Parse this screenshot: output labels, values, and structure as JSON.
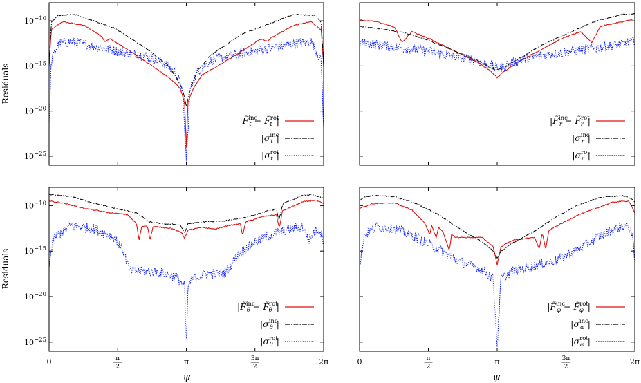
{
  "figure": {
    "ylabel": "Residuals",
    "xlabel": "ψ"
  },
  "chart_data": [
    {
      "type": "line",
      "panel": "t",
      "yscale": "log",
      "xlim": [
        0,
        6.2832
      ],
      "ylim": [
        1e-26,
        1e-08
      ],
      "yticks": [
        "10−10",
        "10−15",
        "10−20",
        "10−25"
      ],
      "xticks": [],
      "series": [
        {
          "name": "|F̃t^inc − F̃t^rot|",
          "color": "#e01010",
          "style": "solid",
          "x": [
            0,
            0.05,
            0.3,
            0.8,
            1.2,
            1.28,
            1.4,
            1.8,
            2.3,
            2.8,
            3.0,
            3.1,
            3.1416,
            3.18,
            3.3,
            3.5,
            4.0,
            4.5,
            4.85,
            5.0,
            5.1,
            5.6,
            6.0,
            6.23,
            6.2832
          ],
          "log10y": [
            -15,
            -11,
            -10.1,
            -10.5,
            -11.7,
            -12.3,
            -12,
            -13.2,
            -14.8,
            -16.5,
            -17.5,
            -19,
            -24,
            -19,
            -17.5,
            -16,
            -14.6,
            -13.1,
            -12,
            -12.3,
            -11.8,
            -10.5,
            -10.1,
            -11,
            -15
          ]
        },
        {
          "name": "|σt^inc|",
          "color": "#000000",
          "style": "dashdot",
          "x": [
            0,
            0.05,
            0.2,
            0.6,
            1.5,
            2.2,
            2.7,
            2.9,
            3.05,
            3.1416,
            3.23,
            3.4,
            3.7,
            4.4,
            5.6,
            6.1,
            6.23,
            6.2832
          ],
          "log10y": [
            -15,
            -10.2,
            -9.4,
            -9.3,
            -10.8,
            -13,
            -14.8,
            -16.2,
            -17.5,
            -19.5,
            -17.5,
            -15.5,
            -13.8,
            -11.5,
            -9.3,
            -9.4,
            -10.2,
            -15
          ]
        },
        {
          "name": "|σt^rot|",
          "color": "#0a1cff",
          "style": "dotted",
          "x": [
            0,
            0.05,
            0.2,
            0.5,
            1.0,
            1.6,
            2.2,
            2.6,
            2.9,
            3.05,
            3.1416,
            3.23,
            3.4,
            3.7,
            4.2,
            4.7,
            5.5,
            6.0,
            6.23,
            6.2832
          ],
          "log10y": [
            -22,
            -14.5,
            -12.6,
            -12.3,
            -12.8,
            -13.4,
            -13.9,
            -14.6,
            -15.8,
            -17.5,
            -25.5,
            -17.5,
            -15.6,
            -14.4,
            -13.8,
            -13.4,
            -12.6,
            -12.3,
            -14.5,
            -22
          ]
        }
      ]
    },
    {
      "type": "line",
      "panel": "r",
      "yscale": "log",
      "xlim": [
        0,
        6.2832
      ],
      "ylim": [
        1e-26,
        1e-08
      ],
      "yticks": [],
      "xticks": [],
      "series": [
        {
          "name": "|F̃r^inc − F̃r^rot|",
          "color": "#e01010",
          "style": "solid",
          "x": [
            0,
            0.4,
            0.8,
            0.97,
            1.2,
            1.6,
            2.2,
            2.7,
            3.0,
            3.1416,
            3.3,
            3.6,
            4.1,
            4.6,
            5.05,
            5.3,
            5.5,
            6.0,
            6.2832
          ],
          "log10y": [
            -9.9,
            -10.1,
            -10.7,
            -12.4,
            -11.2,
            -12,
            -13.4,
            -14.6,
            -15.6,
            -16.3,
            -15.6,
            -14.6,
            -13.3,
            -12,
            -11.2,
            -12.4,
            -10.6,
            -10.1,
            -9.8
          ]
        },
        {
          "name": "|σr^inc|",
          "color": "#000000",
          "style": "dashdot",
          "x": [
            0,
            0.5,
            1.0,
            1.6,
            2.2,
            2.7,
            3.0,
            3.1416,
            3.3,
            3.7,
            4.2,
            4.8,
            5.4,
            6.0,
            6.2832
          ],
          "log10y": [
            -10.6,
            -10.9,
            -11.3,
            -12.2,
            -13.4,
            -14.4,
            -15.2,
            -15.4,
            -15.2,
            -14,
            -12.6,
            -11.3,
            -10,
            -9.3,
            -9.2
          ]
        },
        {
          "name": "|σr^rot|",
          "color": "#0a1cff",
          "style": "dotted",
          "x": [
            0,
            0.5,
            1.0,
            1.6,
            2.2,
            2.7,
            3.0,
            3.1416,
            3.3,
            3.7,
            4.2,
            4.8,
            5.4,
            6.0,
            6.2832
          ],
          "log10y": [
            -12.4,
            -12.7,
            -13,
            -13.4,
            -14,
            -14.4,
            -15,
            -15.3,
            -15,
            -14.3,
            -13.8,
            -13.4,
            -13,
            -12.6,
            -12.2
          ]
        }
      ]
    },
    {
      "type": "line",
      "panel": "theta",
      "yscale": "log",
      "xlim": [
        0,
        6.2832
      ],
      "ylim": [
        1e-26,
        1e-08
      ],
      "yticks": [
        "10−10",
        "10−15",
        "10−20",
        "10−25"
      ],
      "xticks": [
        "0",
        "π/2",
        "π",
        "3π/2",
        "2π"
      ],
      "series": [
        {
          "name": "|F̃θ^inc − F̃θ^rot|",
          "color": "#e01010",
          "style": "solid",
          "x": [
            0,
            0.3,
            0.8,
            1.4,
            1.8,
            2.0,
            2.06,
            2.12,
            2.25,
            2.31,
            2.38,
            2.8,
            3.04,
            3.1,
            3.18,
            3.5,
            3.8,
            4.1,
            4.38,
            4.43,
            4.5,
            4.9,
            5.2,
            5.27,
            5.34,
            5.8,
            6.1,
            6.2832
          ],
          "log10y": [
            -9.5,
            -9.7,
            -10.3,
            -10.8,
            -11,
            -12,
            -13.8,
            -12.3,
            -12.2,
            -13.8,
            -12.3,
            -12.5,
            -13,
            -13.6,
            -12.7,
            -12.4,
            -12.6,
            -12.2,
            -12,
            -13.3,
            -11.8,
            -11.2,
            -11,
            -12.5,
            -10.6,
            -9.6,
            -9.4,
            -9.8
          ]
        },
        {
          "name": "|σθ^inc|",
          "color": "#000000",
          "style": "dashdot",
          "x": [
            0,
            0.5,
            1.0,
            1.5,
            2.0,
            2.3,
            2.6,
            3.0,
            3.1,
            3.18,
            3.5,
            4.0,
            4.5,
            5.0,
            5.2,
            5.26,
            5.35,
            5.8,
            6.0,
            6.2832
          ],
          "log10y": [
            -8.8,
            -9,
            -9.7,
            -10.3,
            -10.8,
            -11.8,
            -12,
            -12.1,
            -13,
            -12,
            -11.8,
            -11.7,
            -11.3,
            -10.6,
            -10.4,
            -11.6,
            -9.8,
            -8.9,
            -8.8,
            -9.2
          ]
        },
        {
          "name": "|σθ^rot|",
          "color": "#0a1cff",
          "style": "dotted",
          "x": [
            0,
            0.1,
            0.5,
            1.0,
            1.5,
            1.7,
            1.8,
            1.85,
            2.0,
            2.5,
            2.9,
            3.1,
            3.14,
            3.18,
            3.3,
            3.6,
            4.0,
            4.1,
            4.3,
            4.7,
            5.1,
            5.5,
            5.8,
            5.95,
            6.05,
            6.2,
            6.2832
          ],
          "log10y": [
            -16.5,
            -13.6,
            -12.2,
            -12.5,
            -13.5,
            -15,
            -16.5,
            -17.2,
            -17.2,
            -17.3,
            -17.8,
            -18.8,
            -25.5,
            -18.8,
            -18,
            -17.5,
            -17.5,
            -17,
            -15.5,
            -14,
            -13.2,
            -12.6,
            -12.3,
            -13.8,
            -13,
            -12.6,
            -14
          ]
        }
      ]
    },
    {
      "type": "line",
      "panel": "phi",
      "yscale": "log",
      "xlim": [
        0,
        6.2832
      ],
      "ylim": [
        1e-26,
        1e-08
      ],
      "yticks": [],
      "xticks": [
        "0",
        "π/2",
        "π",
        "3π/2",
        "2π"
      ],
      "series": [
        {
          "name": "|F̃φ^inc − F̃φ^rot|",
          "color": "#e01010",
          "style": "solid",
          "x": [
            0,
            0.3,
            0.8,
            1.2,
            1.5,
            1.6,
            1.65,
            1.75,
            1.8,
            1.9,
            2.05,
            2.1,
            2.2,
            2.8,
            3.05,
            3.1416,
            3.23,
            3.5,
            4.0,
            4.1,
            4.17,
            4.25,
            4.32,
            4.4,
            4.6,
            5.0,
            5.8,
            6.15,
            6.2832
          ],
          "log10y": [
            -10.3,
            -9.8,
            -9.7,
            -10.5,
            -12,
            -13.2,
            -12.2,
            -13.6,
            -12.4,
            -12.8,
            -15,
            -13.2,
            -13.5,
            -13.5,
            -14.5,
            -16.5,
            -14.5,
            -13.8,
            -13.5,
            -14.8,
            -13,
            -14.8,
            -12.8,
            -12.5,
            -12,
            -11,
            -9.6,
            -9.5,
            -10.8
          ]
        },
        {
          "name": "|σφ^inc|",
          "color": "#000000",
          "style": "dashdot",
          "x": [
            0,
            0.1,
            0.3,
            0.8,
            1.3,
            1.8,
            2.3,
            2.8,
            3.05,
            3.1416,
            3.23,
            3.5,
            4.0,
            4.5,
            5.0,
            5.5,
            6.0,
            6.2,
            6.2832
          ],
          "log10y": [
            -9.5,
            -9.1,
            -8.9,
            -9,
            -9.8,
            -11,
            -12.6,
            -14,
            -15,
            -15.8,
            -15,
            -14.1,
            -12.8,
            -11.2,
            -9.9,
            -9.1,
            -8.9,
            -9.2,
            -9.6
          ]
        },
        {
          "name": "|σφ^rot|",
          "color": "#0a1cff",
          "style": "dotted",
          "x": [
            0,
            0.1,
            0.4,
            0.8,
            1.3,
            1.8,
            2.3,
            2.8,
            3.05,
            3.1416,
            3.23,
            3.5,
            4.0,
            4.5,
            5.0,
            5.5,
            6.0,
            6.2,
            6.2832
          ],
          "log10y": [
            -17,
            -13.3,
            -12.3,
            -12.5,
            -13.5,
            -14.8,
            -16.2,
            -17,
            -18,
            -25.5,
            -18,
            -17.2,
            -16.6,
            -16,
            -14.8,
            -13.3,
            -12.2,
            -12.5,
            -16
          ]
        }
      ]
    }
  ]
}
